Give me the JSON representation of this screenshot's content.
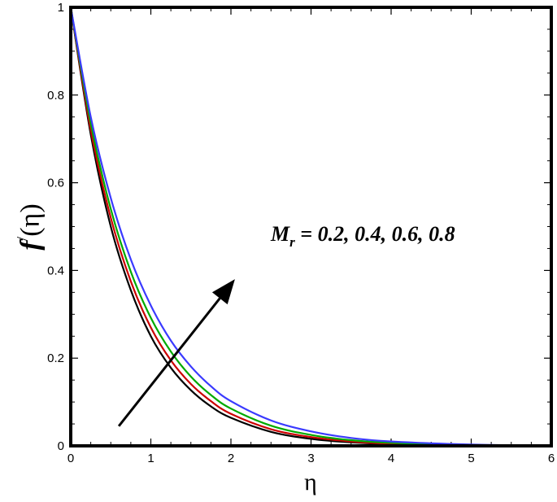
{
  "chart_data": {
    "type": "line",
    "xlabel": "η",
    "ylabel": {
      "base": "f",
      "prime": "/",
      "arg": "(η)"
    },
    "xlim": [
      0,
      6
    ],
    "ylim": [
      0,
      1
    ],
    "xticks": [
      0,
      1,
      2,
      3,
      4,
      5,
      6
    ],
    "yticks": [
      0,
      0.2,
      0.4,
      0.6,
      0.8,
      1
    ],
    "xtick_labels": [
      "0",
      "1",
      "2",
      "3",
      "4",
      "5",
      "6"
    ],
    "ytick_labels": [
      "0",
      "0.2",
      "0.4",
      "0.6",
      "0.8",
      "1"
    ],
    "grid": false,
    "legend": "none",
    "x": [
      0,
      0.25,
      0.5,
      0.75,
      1,
      1.25,
      1.5,
      1.75,
      2,
      2.5,
      3,
      3.5,
      4,
      5,
      6
    ],
    "series": [
      {
        "color": "#000000",
        "values": [
          1,
          0.71,
          0.5,
          0.355,
          0.25,
          0.178,
          0.127,
          0.09,
          0.064,
          0.032,
          0.016,
          0.008,
          0.004,
          0.001,
          0
        ]
      },
      {
        "color": "#cc0000",
        "values": [
          1,
          0.72,
          0.52,
          0.375,
          0.27,
          0.195,
          0.141,
          0.102,
          0.073,
          0.038,
          0.02,
          0.01,
          0.005,
          0.0013,
          0
        ]
      },
      {
        "color": "#00aa00",
        "values": [
          1,
          0.735,
          0.54,
          0.397,
          0.292,
          0.215,
          0.158,
          0.116,
          0.085,
          0.046,
          0.025,
          0.013,
          0.007,
          0.002,
          0
        ]
      },
      {
        "color": "#3a3aff",
        "values": [
          1,
          0.75,
          0.565,
          0.425,
          0.32,
          0.24,
          0.181,
          0.136,
          0.102,
          0.058,
          0.033,
          0.018,
          0.01,
          0.003,
          0
        ]
      }
    ],
    "annotation": {
      "text_main": "M",
      "text_sub": "r",
      "text_rest": " = 0.2, 0.4, 0.6, 0.8",
      "arrow_from": [
        0.6,
        0.045
      ],
      "arrow_to": [
        2.05,
        0.38
      ]
    }
  }
}
